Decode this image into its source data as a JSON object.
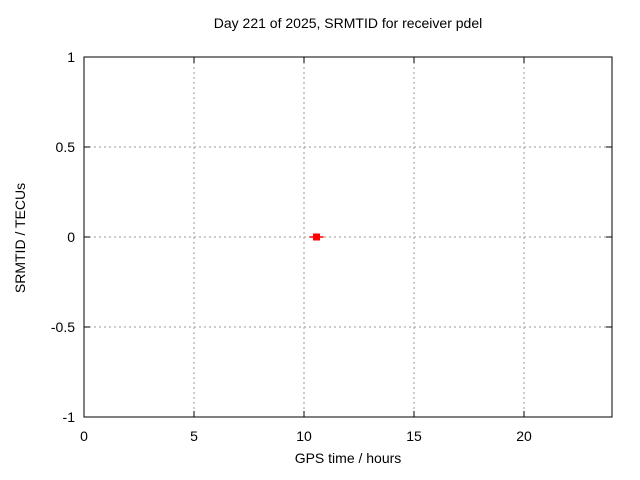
{
  "chart_data": {
    "type": "scatter",
    "title": "Day 221 of 2025, SRMTID for receiver pdel",
    "xlabel": "GPS time / hours",
    "ylabel": "SRMTID / TECUs",
    "xlim": [
      0,
      24
    ],
    "ylim": [
      -1,
      1
    ],
    "xticks": [
      0,
      5,
      10,
      15,
      20
    ],
    "xtick_labels": [
      "0",
      "5",
      "10",
      "15",
      "20"
    ],
    "yticks": [
      -1,
      -0.5,
      0,
      0.5,
      1
    ],
    "ytick_labels": [
      "-1",
      "-0.5",
      "0",
      "0.5",
      "1"
    ],
    "grid": true,
    "grid_style": "dashed",
    "legend": false,
    "series": [
      {
        "name": "SRMTID",
        "marker": "filled-square",
        "color": "#ff0000",
        "points": [
          {
            "x": 10.57,
            "y": 0.0,
            "xerr": 0.32
          }
        ]
      }
    ],
    "colors": {
      "background": "#ffffff",
      "border": "#000000",
      "grid": "#999999",
      "text": "#000000",
      "point": "#ff0000"
    }
  }
}
